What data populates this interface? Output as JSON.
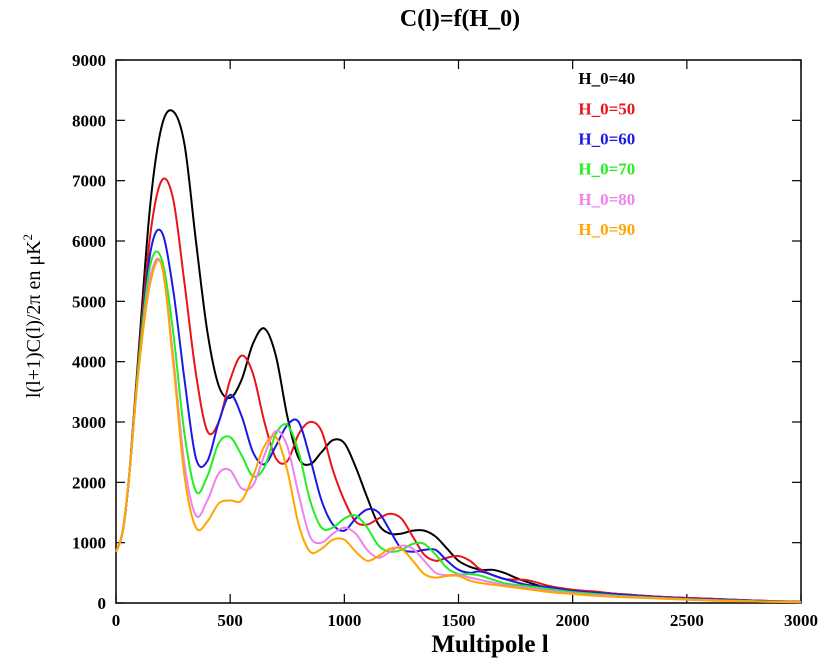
{
  "chart_data": {
    "type": "line",
    "title": "C(l)=f(H_0)",
    "xlabel": "Multipole l",
    "ylabel": "l(l+1)C(l)/2π en μK²",
    "ylabel_parts": {
      "main": "l(l+1)C(l)/2π en μK",
      "sup": "2"
    },
    "xlim": [
      0,
      3000
    ],
    "ylim": [
      0,
      9000
    ],
    "xticks": [
      0,
      500,
      1000,
      1500,
      2000,
      2500,
      3000
    ],
    "yticks": [
      0,
      1000,
      2000,
      3000,
      4000,
      5000,
      6000,
      7000,
      8000,
      9000
    ],
    "grid": false,
    "legend_position": "top-right",
    "series": [
      {
        "name": "H_0=40",
        "color": "#000000",
        "x": [
          0,
          30,
          60,
          100,
          150,
          200,
          250,
          300,
          350,
          400,
          450,
          500,
          550,
          600,
          650,
          700,
          750,
          800,
          850,
          900,
          950,
          1000,
          1050,
          1100,
          1150,
          1200,
          1250,
          1300,
          1350,
          1400,
          1450,
          1500,
          1550,
          1600,
          1650,
          1700,
          1750,
          1800,
          1900,
          2000,
          2100,
          2200,
          2400,
          2600,
          2800,
          3000
        ],
        "y": [
          850,
          1200,
          2200,
          4200,
          6600,
          7900,
          8150,
          7600,
          6000,
          4500,
          3600,
          3400,
          3700,
          4300,
          4550,
          4100,
          3100,
          2400,
          2300,
          2500,
          2700,
          2650,
          2250,
          1750,
          1300,
          1150,
          1150,
          1200,
          1200,
          1100,
          900,
          700,
          600,
          550,
          550,
          500,
          420,
          350,
          240,
          200,
          180,
          150,
          100,
          70,
          40,
          20
        ]
      },
      {
        "name": "H_0=50",
        "color": "#e8141a",
        "x": [
          0,
          30,
          60,
          100,
          150,
          200,
          250,
          300,
          350,
          400,
          450,
          500,
          550,
          600,
          650,
          700,
          750,
          800,
          850,
          900,
          950,
          1000,
          1050,
          1100,
          1150,
          1200,
          1250,
          1300,
          1350,
          1400,
          1450,
          1500,
          1550,
          1600,
          1700,
          1800,
          1900,
          2000,
          2100,
          2200,
          2400,
          2600,
          2800,
          3000
        ],
        "y": [
          850,
          1200,
          2200,
          4100,
          6100,
          7000,
          6700,
          5300,
          3800,
          2850,
          3000,
          3700,
          4100,
          3800,
          3000,
          2400,
          2350,
          2800,
          3000,
          2850,
          2200,
          1700,
          1350,
          1300,
          1400,
          1480,
          1400,
          1100,
          800,
          700,
          750,
          780,
          700,
          550,
          400,
          380,
          280,
          220,
          190,
          150,
          100,
          70,
          40,
          20
        ]
      },
      {
        "name": "H_0=60",
        "color": "#1a1ae6",
        "x": [
          0,
          30,
          60,
          100,
          150,
          200,
          250,
          300,
          350,
          400,
          450,
          500,
          550,
          600,
          650,
          700,
          750,
          800,
          850,
          900,
          950,
          1000,
          1050,
          1100,
          1150,
          1200,
          1250,
          1300,
          1350,
          1400,
          1450,
          1500,
          1550,
          1600,
          1700,
          1800,
          1900,
          2000,
          2100,
          2200,
          2400,
          2600,
          2800,
          3000
        ],
        "y": [
          850,
          1200,
          2200,
          4000,
          5800,
          6150,
          5200,
          3700,
          2400,
          2350,
          3000,
          3450,
          3100,
          2500,
          2300,
          2600,
          2950,
          3000,
          2400,
          1700,
          1300,
          1200,
          1400,
          1550,
          1500,
          1200,
          900,
          850,
          880,
          880,
          700,
          550,
          500,
          520,
          400,
          300,
          260,
          200,
          170,
          140,
          90,
          60,
          35,
          15
        ]
      },
      {
        "name": "H_0=70",
        "color": "#22ee22",
        "x": [
          0,
          30,
          60,
          100,
          150,
          200,
          250,
          300,
          350,
          400,
          450,
          500,
          550,
          600,
          650,
          700,
          750,
          800,
          850,
          900,
          950,
          1000,
          1050,
          1100,
          1150,
          1200,
          1250,
          1300,
          1350,
          1400,
          1450,
          1500,
          1550,
          1600,
          1700,
          1800,
          1900,
          2000,
          2100,
          2200,
          2400,
          2600,
          2800,
          3000
        ],
        "y": [
          850,
          1200,
          2200,
          4000,
          5600,
          5700,
          4500,
          2800,
          1850,
          2100,
          2650,
          2750,
          2450,
          2100,
          2250,
          2800,
          2950,
          2500,
          1700,
          1250,
          1250,
          1400,
          1450,
          1250,
          950,
          850,
          880,
          980,
          980,
          800,
          580,
          480,
          480,
          450,
          330,
          280,
          230,
          180,
          150,
          120,
          80,
          50,
          30,
          15
        ]
      },
      {
        "name": "H_0=80",
        "color": "#ee82ee",
        "x": [
          0,
          30,
          60,
          100,
          150,
          200,
          250,
          300,
          350,
          400,
          450,
          500,
          550,
          600,
          650,
          700,
          750,
          800,
          850,
          900,
          950,
          1000,
          1050,
          1100,
          1150,
          1200,
          1250,
          1300,
          1350,
          1400,
          1450,
          1500,
          1550,
          1600,
          1700,
          1800,
          1900,
          2000,
          2100,
          2200,
          2400,
          2600,
          2800,
          3000
        ],
        "y": [
          850,
          1200,
          2200,
          3900,
          5400,
          5600,
          4100,
          2300,
          1450,
          1700,
          2150,
          2200,
          1900,
          1950,
          2450,
          2850,
          2600,
          1800,
          1100,
          1000,
          1150,
          1250,
          1150,
          880,
          750,
          850,
          950,
          900,
          700,
          500,
          460,
          470,
          420,
          380,
          300,
          250,
          200,
          160,
          130,
          110,
          75,
          45,
          25,
          15
        ]
      },
      {
        "name": "H_0=90",
        "color": "#ffa500",
        "x": [
          0,
          30,
          60,
          100,
          150,
          200,
          250,
          300,
          350,
          400,
          450,
          500,
          550,
          600,
          650,
          700,
          750,
          800,
          850,
          900,
          950,
          1000,
          1050,
          1100,
          1150,
          1200,
          1250,
          1300,
          1350,
          1400,
          1450,
          1500,
          1550,
          1600,
          1700,
          1800,
          1900,
          2000,
          2100,
          2200,
          2400,
          2600,
          2800,
          3000
        ],
        "y": [
          850,
          1200,
          2200,
          3900,
          5300,
          5600,
          4000,
          2100,
          1250,
          1350,
          1650,
          1700,
          1700,
          2100,
          2600,
          2750,
          2200,
          1300,
          850,
          900,
          1050,
          1050,
          850,
          700,
          780,
          900,
          900,
          700,
          480,
          420,
          450,
          450,
          370,
          330,
          280,
          230,
          180,
          150,
          120,
          100,
          70,
          40,
          25,
          12
        ]
      }
    ]
  }
}
